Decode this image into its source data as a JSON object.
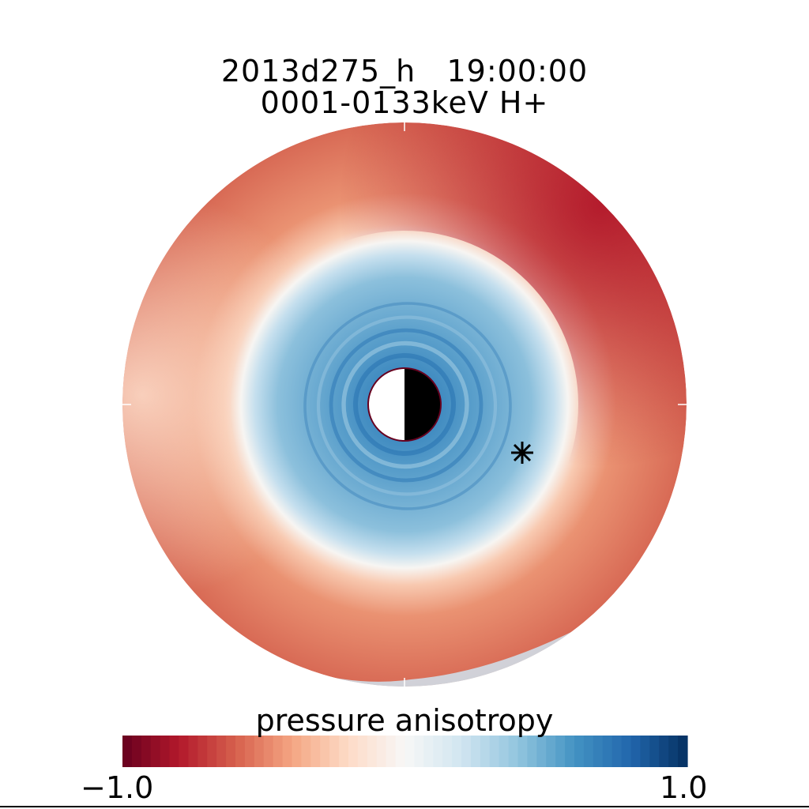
{
  "chart_data": {
    "type": "heatmap",
    "projection": "polar",
    "title": "2013d275_h   19:00:00",
    "subtitle": "0001-0133keV H+",
    "colorbar": {
      "label": "pressure anisotropy",
      "min_label": "-1.0",
      "max_label": "1.0",
      "range": [
        -1.0,
        1.0
      ],
      "colormap": [
        "#67001f",
        "#b2182b",
        "#d6604d",
        "#f4a582",
        "#fddbc7",
        "#f7f7f7",
        "#d1e5f0",
        "#92c5de",
        "#4393c3",
        "#2166ac",
        "#053061"
      ],
      "levels": 60
    },
    "description_of_field": {
      "inner_region_value": 0.6,
      "outer_region_value": -0.6,
      "upper_right_outer_value": -0.85,
      "left_outer_value": -0.35
    },
    "markers": [
      {
        "symbol": "asterisk"
      }
    ],
    "earth_symbol": {
      "day_side": "left",
      "night_side": "right"
    }
  }
}
